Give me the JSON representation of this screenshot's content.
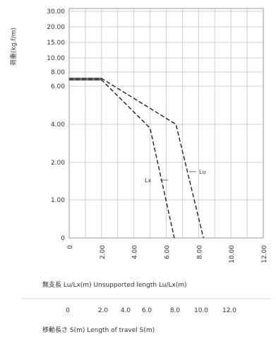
{
  "chart_data": {
    "type": "line",
    "xlabel": "無支長 Lu/Lx(m) Unsupported length Lu/Lx(m)",
    "ylabel": "荷重(kg.f/m)",
    "y_tick_labels": [
      "0",
      "1.00",
      "2.00",
      "4.00",
      "6.00",
      "8.00",
      "10.00",
      "15.00",
      "20.00",
      "30.00"
    ],
    "x_tick_labels": [
      "0",
      "2.00",
      "4.00",
      "6.00",
      "8.00",
      "10.00",
      "12.00"
    ],
    "secondary_xlabel": "移動長さ S(m) Length of travel S(m)",
    "secondary_x_tick_labels": [
      "0",
      "2.0",
      "4.0",
      "6.0",
      "8.0",
      "10.0",
      "12.0"
    ],
    "grid": true,
    "series": [
      {
        "name": "Lx",
        "style": "dashed",
        "color": "#222222",
        "points": [
          [
            0,
            6.9
          ],
          [
            2.0,
            6.9
          ],
          [
            5.0,
            3.8
          ],
          [
            6.5,
            0
          ]
        ]
      },
      {
        "name": "Lu",
        "style": "dashed",
        "color": "#222222",
        "points": [
          [
            0,
            7.1
          ],
          [
            2.0,
            7.1
          ],
          [
            6.6,
            4.0
          ],
          [
            8.3,
            0
          ]
        ]
      }
    ]
  }
}
